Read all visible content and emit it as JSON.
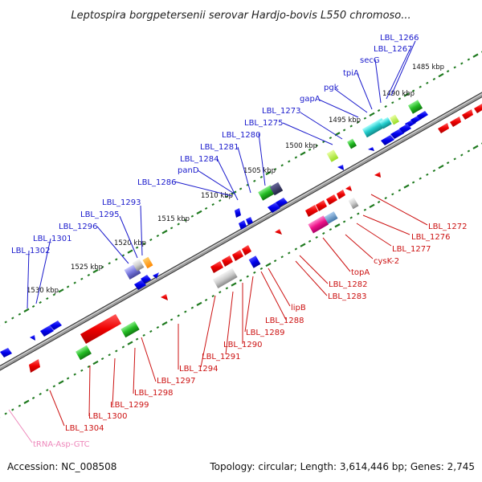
{
  "title": "Leptospira borgpetersenii serovar Hardjo-bovis L550 chromoso...",
  "footer": {
    "accession": "Accession: NC_008508",
    "topology": "Topology: circular; Length: 3,614,446 bp; Genes: 2,745"
  },
  "colors": {
    "background": "#ffffff",
    "backbone": "#8a8a8a",
    "forward_label": "#1a1acc",
    "reverse_label": "#cc1111",
    "rna_label": "#ee88bb",
    "tick": "#1f7a1f"
  },
  "kbp_ticks": [
    "1485 kbp",
    "1490 kbp",
    "1495 kbp",
    "1500 kbp",
    "1505 kbp",
    "1510 kbp",
    "1515 kbp",
    "1520 kbp",
    "1525 kbp",
    "1530 kbp"
  ],
  "forward_genes": [
    "LBL_1266",
    "LBL_1267",
    "secG",
    "tpiA",
    "pgk",
    "gapA",
    "LBL_1273",
    "LBL_1275",
    "LBL_1280",
    "LBL_1281",
    "LBL_1284",
    "panD",
    "LBL_1286",
    "LBL_1293",
    "LBL_1295",
    "LBL_1296",
    "LBL_1301",
    "LBL_1302"
  ],
  "reverse_genes": [
    "LBL_1272",
    "LBL_1276",
    "LBL_1277",
    "cysK-2",
    "topA",
    "LBL_1282",
    "LBL_1283",
    "lipB",
    "LBL_1288",
    "LBL_1289",
    "LBL_1290",
    "LBL_1291",
    "LBL_1294",
    "LBL_1297",
    "LBL_1298",
    "LBL_1299",
    "LBL_1300",
    "LBL_1304"
  ],
  "rna_genes": [
    "tRNA-Asp-GTC"
  ]
}
